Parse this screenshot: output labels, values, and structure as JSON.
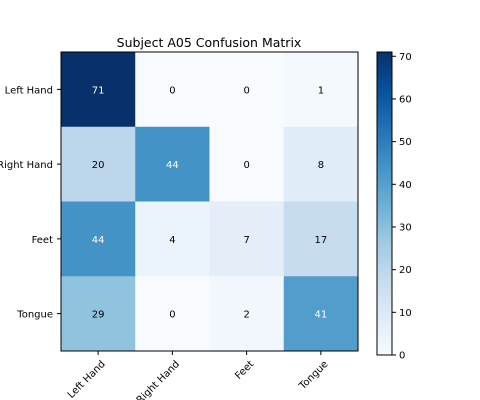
{
  "chart_data": {
    "type": "heatmap",
    "title": "Subject A05 Confusion Matrix",
    "xlabel": "",
    "ylabel": "",
    "row_labels": [
      "Left Hand",
      "Right Hand",
      "Feet",
      "Tongue"
    ],
    "col_labels": [
      "Left Hand",
      "Right Hand",
      "Feet",
      "Tongue"
    ],
    "values": [
      [
        71,
        0,
        0,
        1
      ],
      [
        20,
        44,
        0,
        8
      ],
      [
        44,
        4,
        7,
        17
      ],
      [
        29,
        0,
        2,
        41
      ]
    ],
    "colormap": "Blues",
    "vmin": 0,
    "vmax": 71,
    "colorbar_ticks": [
      "0",
      "10",
      "20",
      "30",
      "40",
      "50",
      "60",
      "70"
    ],
    "grid": false
  }
}
